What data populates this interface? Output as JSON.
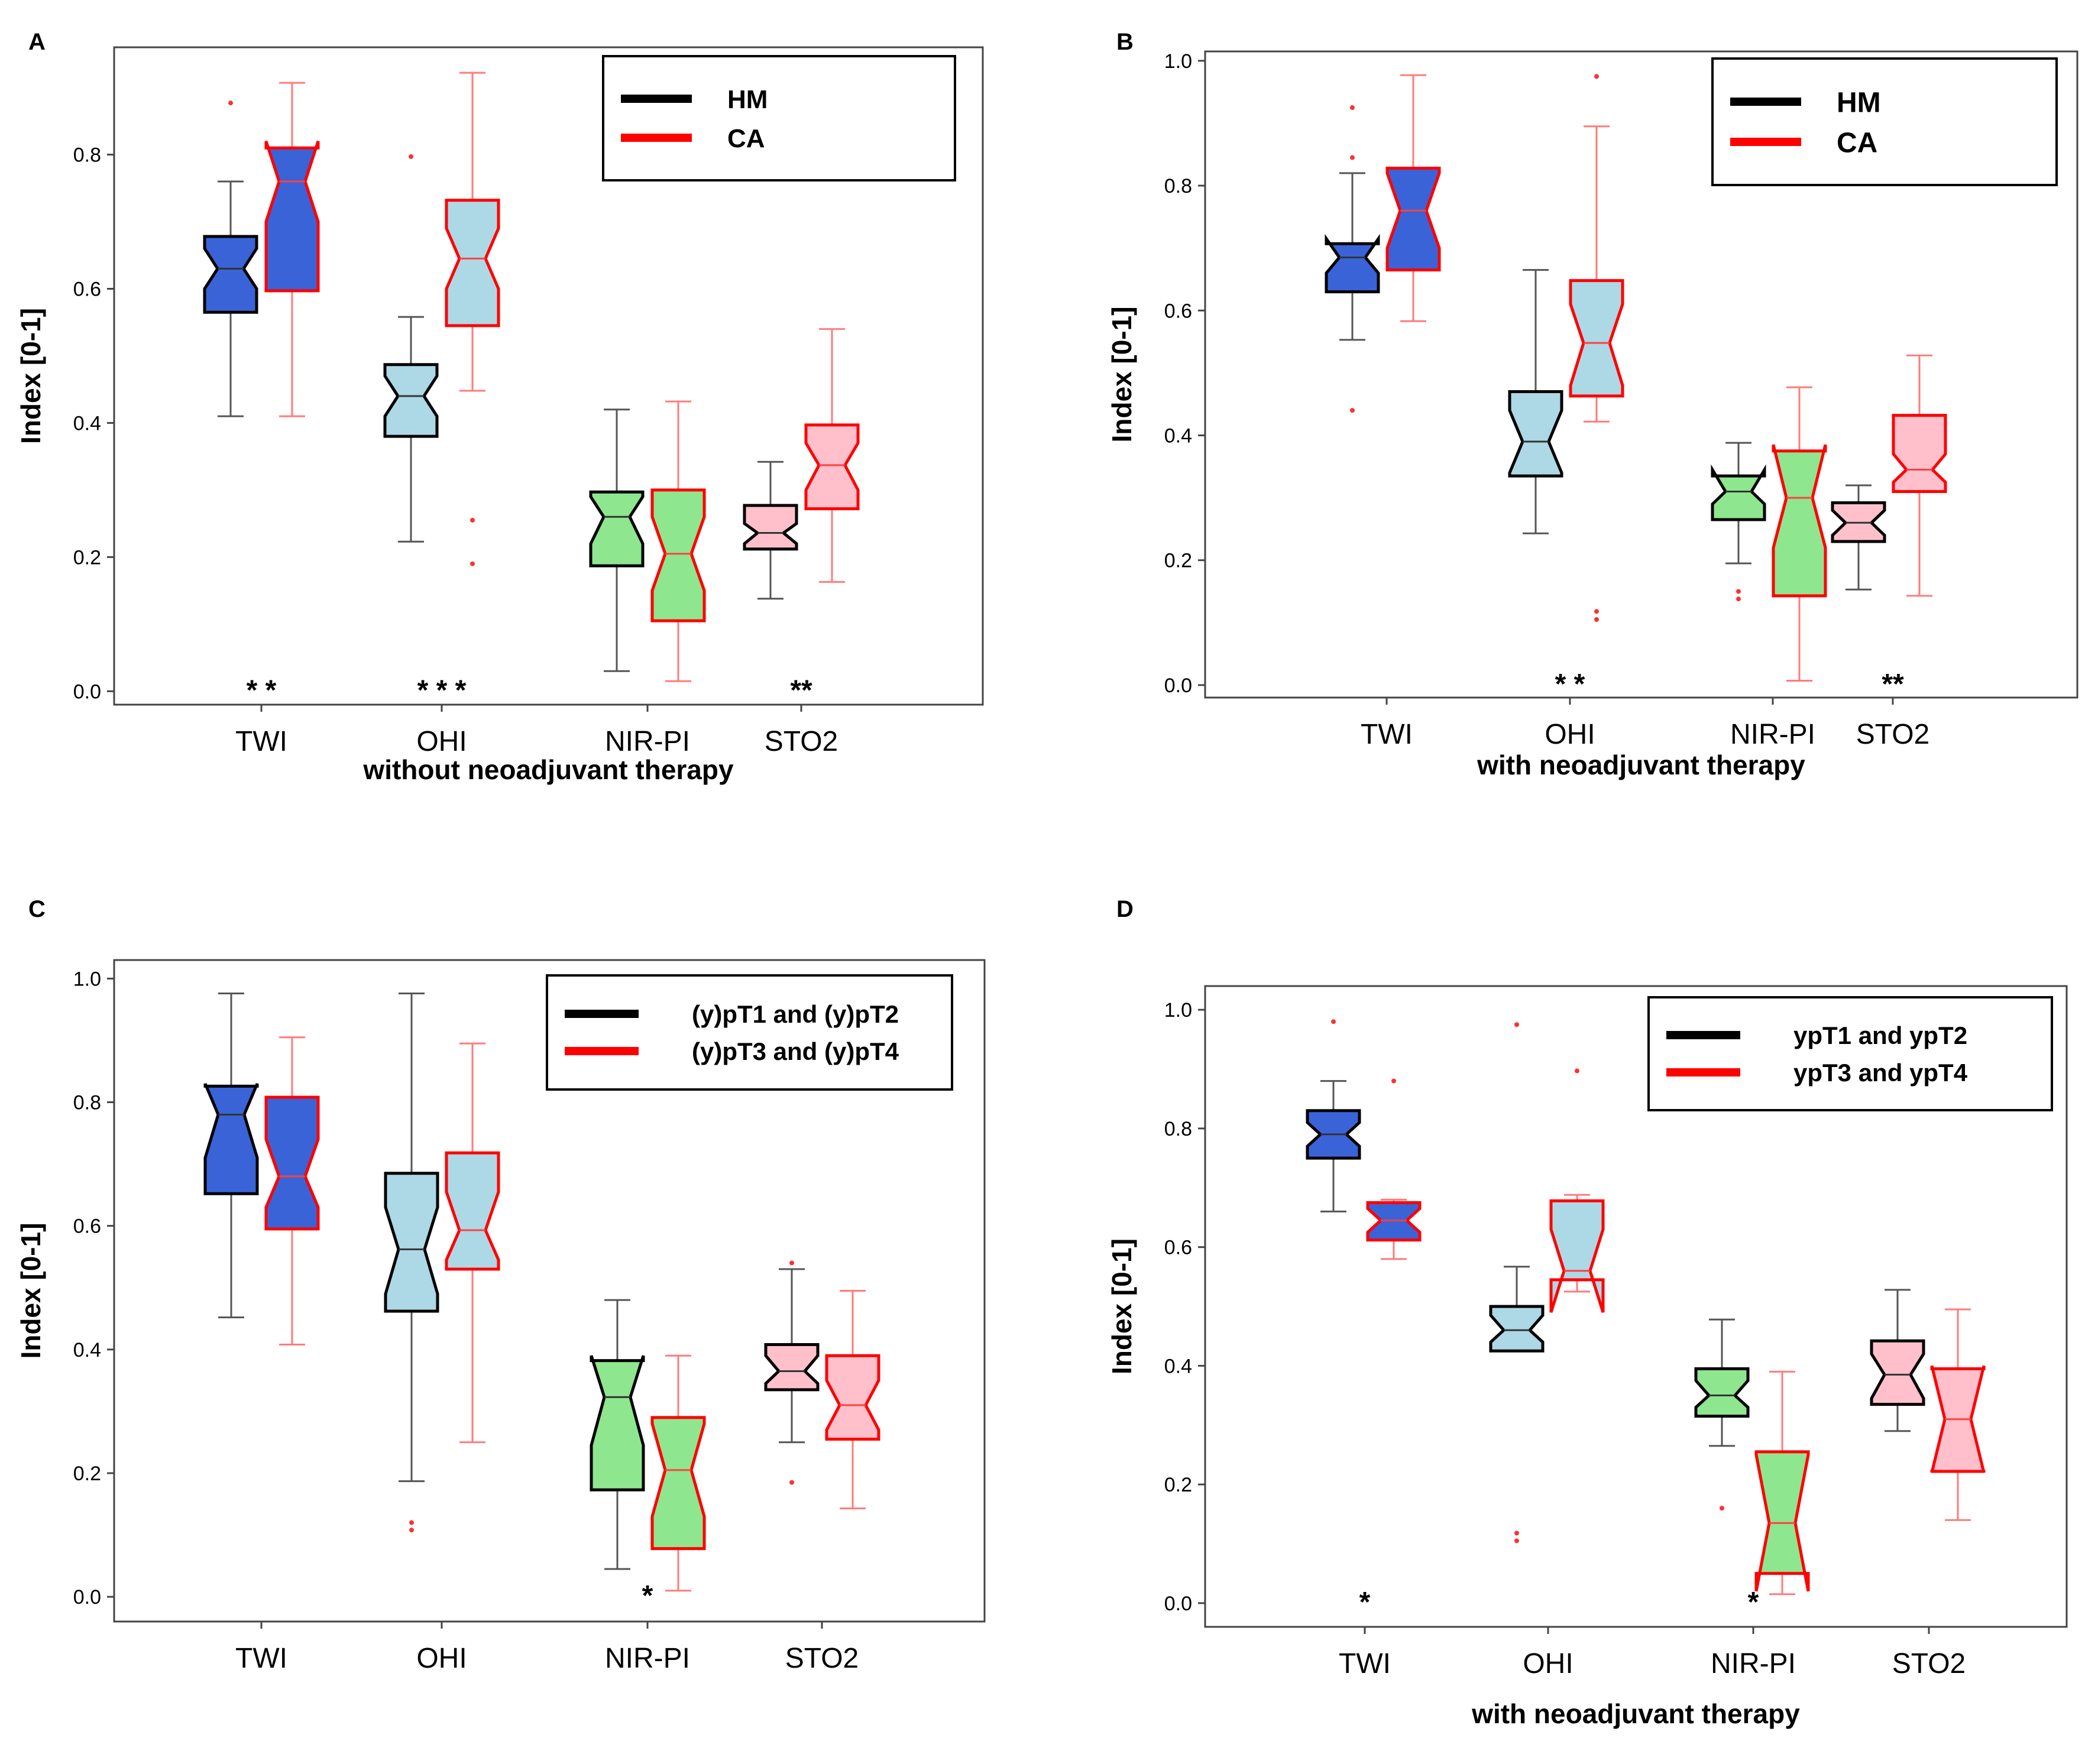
{
  "chart_data": [
    {
      "type": "box",
      "panel_label": "A",
      "title": "",
      "xlabel": "without neoadjuvant therapy",
      "ylabel": "Index [0-1]",
      "ylim": [
        -0.02,
        0.96
      ],
      "yticks": [
        0.0,
        0.2,
        0.4,
        0.6,
        0.8
      ],
      "ytick_labels": [
        "0.0",
        "0.2",
        "0.4",
        "0.6",
        "0.8"
      ],
      "ytick_labels_top": false,
      "categories": [
        "TWI",
        "OHI",
        "NIR-PI",
        "STO2"
      ],
      "legend": {
        "position": "top-right",
        "entries": [
          {
            "label": "HM",
            "color": "#000000"
          },
          {
            "label": "CA",
            "color": "#ff0000"
          }
        ]
      },
      "series": [
        {
          "name": "HM",
          "edge_color": "#000000",
          "boxes": [
            {
              "category": "TWI",
              "whisker_low": 0.41,
              "q1": 0.565,
              "median": 0.63,
              "q3": 0.678,
              "whisker_high": 0.76,
              "outliers": [
                0.877
              ],
              "notch_low": 0.6,
              "notch_high": 0.66,
              "fill": "#3a63d8"
            },
            {
              "category": "OHI",
              "whisker_low": 0.223,
              "q1": 0.38,
              "median": 0.44,
              "q3": 0.487,
              "whisker_high": 0.558,
              "outliers": [
                0.797
              ],
              "notch_low": 0.41,
              "notch_high": 0.47,
              "fill": "#add8e6"
            },
            {
              "category": "NIR-PI",
              "whisker_low": 0.03,
              "q1": 0.187,
              "median": 0.26,
              "q3": 0.297,
              "whisker_high": 0.42,
              "outliers": [],
              "notch_low": 0.22,
              "notch_high": 0.29,
              "fill": "#8ee68e"
            },
            {
              "category": "STO2",
              "whisker_low": 0.138,
              "q1": 0.212,
              "median": 0.236,
              "q3": 0.277,
              "whisker_high": 0.342,
              "outliers": [],
              "notch_low": 0.22,
              "notch_high": 0.25,
              "fill": "#ffc0cb"
            }
          ]
        },
        {
          "name": "CA",
          "edge_color": "#ff0000",
          "boxes": [
            {
              "category": "TWI",
              "whisker_low": 0.41,
              "q1": 0.597,
              "median": 0.76,
              "q3": 0.81,
              "whisker_high": 0.907,
              "outliers": [],
              "notch_low": 0.7,
              "notch_high": 0.82,
              "fill": "#3a63d8"
            },
            {
              "category": "OHI",
              "whisker_low": 0.448,
              "q1": 0.545,
              "median": 0.645,
              "q3": 0.732,
              "whisker_high": 0.922,
              "outliers": [
                0.255,
                0.19
              ],
              "notch_low": 0.6,
              "notch_high": 0.69,
              "fill": "#add8e6"
            },
            {
              "category": "NIR-PI",
              "whisker_low": 0.015,
              "q1": 0.105,
              "median": 0.205,
              "q3": 0.3,
              "whisker_high": 0.432,
              "outliers": [],
              "notch_low": 0.15,
              "notch_high": 0.26,
              "fill": "#8ee68e"
            },
            {
              "category": "STO2",
              "whisker_low": 0.163,
              "q1": 0.272,
              "median": 0.337,
              "q3": 0.397,
              "whisker_high": 0.54,
              "outliers": [],
              "notch_low": 0.3,
              "notch_high": 0.37,
              "fill": "#ffc0cb"
            }
          ]
        }
      ],
      "annotations": [
        {
          "text": "* *",
          "category": "TWI",
          "y": 0.0
        },
        {
          "text": "* * *",
          "category": "OHI",
          "y": 0.0
        },
        {
          "text": "**",
          "category": "STO2",
          "y": 0.0
        }
      ]
    },
    {
      "type": "box",
      "panel_label": "B",
      "title": "",
      "xlabel": "with neoadjuvant therapy",
      "ylabel": "Index [0-1]",
      "ylim": [
        -0.02,
        1.015
      ],
      "yticks": [
        0.0,
        0.2,
        0.4,
        0.6,
        0.8,
        1.0
      ],
      "ytick_labels": [
        "0.0",
        "0.2",
        "0.4",
        "0.6",
        "0.8",
        "1.0"
      ],
      "ytick_labels_top": false,
      "categories": [
        "TWI",
        "OHI",
        "NIR-PI",
        "STO2"
      ],
      "legend": {
        "position": "top-right",
        "entries": [
          {
            "label": "HM",
            "color": "#000000"
          },
          {
            "label": "CA",
            "color": "#ff0000"
          }
        ]
      },
      "series": [
        {
          "name": "HM",
          "edge_color": "#000000",
          "boxes": [
            {
              "category": "TWI",
              "whisker_low": 0.553,
              "q1": 0.63,
              "median": 0.685,
              "q3": 0.707,
              "whisker_high": 0.82,
              "outliers": [
                0.925,
                0.845,
                0.44
              ],
              "notch_low": 0.66,
              "notch_high": 0.715,
              "fill": "#3a63d8"
            },
            {
              "category": "OHI",
              "whisker_low": 0.243,
              "q1": 0.335,
              "median": 0.39,
              "q3": 0.47,
              "whisker_high": 0.665,
              "outliers": [],
              "notch_low": 0.34,
              "notch_high": 0.44,
              "fill": "#add8e6"
            },
            {
              "category": "NIR-PI",
              "whisker_low": 0.195,
              "q1": 0.265,
              "median": 0.31,
              "q3": 0.335,
              "whisker_high": 0.388,
              "outliers": [
                0.15,
                0.138
              ],
              "notch_low": 0.29,
              "notch_high": 0.345,
              "fill": "#8ee68e"
            },
            {
              "category": "STO2",
              "whisker_low": 0.153,
              "q1": 0.23,
              "median": 0.26,
              "q3": 0.292,
              "whisker_high": 0.32,
              "outliers": [],
              "notch_low": 0.24,
              "notch_high": 0.28,
              "fill": "#ffc0cb"
            }
          ]
        },
        {
          "name": "CA",
          "edge_color": "#ff0000",
          "boxes": [
            {
              "category": "TWI",
              "whisker_low": 0.583,
              "q1": 0.665,
              "median": 0.76,
              "q3": 0.828,
              "whisker_high": 0.977,
              "outliers": [],
              "notch_low": 0.7,
              "notch_high": 0.82,
              "fill": "#3a63d8"
            },
            {
              "category": "OHI",
              "whisker_low": 0.422,
              "q1": 0.463,
              "median": 0.548,
              "q3": 0.648,
              "whisker_high": 0.895,
              "outliers": [
                0.975,
                0.118,
                0.105
              ],
              "notch_low": 0.48,
              "notch_high": 0.61,
              "fill": "#add8e6"
            },
            {
              "category": "NIR-PI",
              "whisker_low": 0.007,
              "q1": 0.143,
              "median": 0.3,
              "q3": 0.375,
              "whisker_high": 0.477,
              "outliers": [],
              "notch_low": 0.22,
              "notch_high": 0.385,
              "fill": "#8ee68e"
            },
            {
              "category": "STO2",
              "whisker_low": 0.143,
              "q1": 0.31,
              "median": 0.345,
              "q3": 0.432,
              "whisker_high": 0.528,
              "outliers": [],
              "notch_low": 0.325,
              "notch_high": 0.37,
              "fill": "#ffc0cb"
            }
          ]
        }
      ],
      "annotations": [
        {
          "text": "* *",
          "category": "OHI",
          "y": 0.0
        },
        {
          "text": "**",
          "category": "STO2",
          "y": 0.0
        }
      ]
    },
    {
      "type": "box",
      "panel_label": "C",
      "title": "",
      "xlabel": "",
      "ylabel": "Index [0-1]",
      "ylim": [
        -0.04,
        1.03
      ],
      "yticks": [
        0.0,
        0.2,
        0.4,
        0.6,
        0.8,
        1.0
      ],
      "ytick_labels": [
        "0.0",
        "0.2",
        "0.4",
        "0.6",
        "0.8",
        "1.0"
      ],
      "ytick_labels_top": false,
      "categories": [
        "TWI",
        "OHI",
        "NIR-PI",
        "STO2"
      ],
      "legend": {
        "position": "top-right",
        "entries": [
          {
            "label": "(y)pT1 and (y)pT2",
            "color": "#000000"
          },
          {
            "label": "(y)pT3 and (y)pT4",
            "color": "#ff0000"
          }
        ]
      },
      "series": [
        {
          "name": "(y)pT1 and (y)pT2",
          "edge_color": "#000000",
          "boxes": [
            {
              "category": "TWI",
              "whisker_low": 0.452,
              "q1": 0.652,
              "median": 0.78,
              "q3": 0.826,
              "whisker_high": 0.976,
              "outliers": [],
              "notch_low": 0.71,
              "notch_high": 0.83,
              "fill": "#3a63d8"
            },
            {
              "category": "OHI",
              "whisker_low": 0.187,
              "q1": 0.462,
              "median": 0.562,
              "q3": 0.685,
              "whisker_high": 0.976,
              "outliers": [
                0.12,
                0.108
              ],
              "notch_low": 0.49,
              "notch_high": 0.63,
              "fill": "#add8e6"
            },
            {
              "category": "NIR-PI",
              "whisker_low": 0.045,
              "q1": 0.173,
              "median": 0.323,
              "q3": 0.382,
              "whisker_high": 0.48,
              "outliers": [],
              "notch_low": 0.245,
              "notch_high": 0.39,
              "fill": "#8ee68e"
            },
            {
              "category": "STO2",
              "whisker_low": 0.25,
              "q1": 0.335,
              "median": 0.365,
              "q3": 0.408,
              "whisker_high": 0.53,
              "outliers": [
                0.185,
                0.54
              ],
              "notch_low": 0.345,
              "notch_high": 0.39,
              "fill": "#ffc0cb"
            }
          ]
        },
        {
          "name": "(y)pT3 and (y)pT4",
          "edge_color": "#ff0000",
          "boxes": [
            {
              "category": "TWI",
              "whisker_low": 0.408,
              "q1": 0.595,
              "median": 0.68,
              "q3": 0.808,
              "whisker_high": 0.905,
              "outliers": [],
              "notch_low": 0.63,
              "notch_high": 0.74,
              "fill": "#3a63d8"
            },
            {
              "category": "OHI",
              "whisker_low": 0.25,
              "q1": 0.53,
              "median": 0.593,
              "q3": 0.718,
              "whisker_high": 0.895,
              "outliers": [],
              "notch_low": 0.545,
              "notch_high": 0.655,
              "fill": "#add8e6"
            },
            {
              "category": "NIR-PI",
              "whisker_low": 0.01,
              "q1": 0.078,
              "median": 0.205,
              "q3": 0.29,
              "whisker_high": 0.39,
              "outliers": [],
              "notch_low": 0.13,
              "notch_high": 0.28,
              "fill": "#8ee68e"
            },
            {
              "category": "STO2",
              "whisker_low": 0.143,
              "q1": 0.255,
              "median": 0.31,
              "q3": 0.39,
              "whisker_high": 0.495,
              "outliers": [],
              "notch_low": 0.27,
              "notch_high": 0.35,
              "fill": "#ffc0cb"
            }
          ]
        }
      ],
      "annotations": [
        {
          "text": "*",
          "category": "NIR-PI",
          "y": 0.0
        }
      ]
    },
    {
      "type": "box",
      "panel_label": "D",
      "title": "",
      "xlabel": "with neoadjuvant therapy",
      "ylabel": "Index [0-1]",
      "ylim": [
        -0.04,
        1.04
      ],
      "yticks": [
        0.0,
        0.2,
        0.4,
        0.6,
        0.8,
        1.0
      ],
      "ytick_labels": [
        "0.0",
        "0.2",
        "0.4",
        "0.6",
        "0.8",
        "1.0"
      ],
      "ytick_labels_top": true,
      "categories": [
        "TWI",
        "OHI",
        "NIR-PI",
        "STO2"
      ],
      "legend": {
        "position": "top-right",
        "entries": [
          {
            "label": "ypT1 and ypT2",
            "color": "#000000"
          },
          {
            "label": "ypT3 and ypT4",
            "color": "#ff0000"
          }
        ]
      },
      "series": [
        {
          "name": "ypT1 and ypT2",
          "edge_color": "#000000",
          "boxes": [
            {
              "category": "TWI",
              "whisker_low": 0.66,
              "q1": 0.75,
              "median": 0.79,
              "q3": 0.83,
              "whisker_high": 0.88,
              "outliers": [
                0.98
              ],
              "notch_low": 0.77,
              "notch_high": 0.81,
              "fill": "#3a63d8"
            },
            {
              "category": "OHI",
              "whisker_low": 0.425,
              "q1": 0.425,
              "median": 0.46,
              "q3": 0.5,
              "whisker_high": 0.567,
              "outliers": [
                0.975,
                0.118,
                0.105
              ],
              "notch_low": 0.44,
              "notch_high": 0.485,
              "fill": "#add8e6"
            },
            {
              "category": "NIR-PI",
              "whisker_low": 0.265,
              "q1": 0.315,
              "median": 0.35,
              "q3": 0.395,
              "whisker_high": 0.478,
              "outliers": [
                0.16
              ],
              "notch_low": 0.33,
              "notch_high": 0.375,
              "fill": "#8ee68e"
            },
            {
              "category": "STO2",
              "whisker_low": 0.29,
              "q1": 0.335,
              "median": 0.385,
              "q3": 0.442,
              "whisker_high": 0.528,
              "outliers": [],
              "notch_low": 0.345,
              "notch_high": 0.42,
              "fill": "#ffc0cb"
            }
          ]
        },
        {
          "name": "ypT3 and ypT4",
          "edge_color": "#ff0000",
          "boxes": [
            {
              "category": "TWI",
              "whisker_low": 0.58,
              "q1": 0.612,
              "median": 0.645,
              "q3": 0.675,
              "whisker_high": 0.68,
              "outliers": [
                0.88
              ],
              "notch_low": 0.625,
              "notch_high": 0.665,
              "fill": "#3a63d8"
            },
            {
              "category": "OHI",
              "whisker_low": 0.525,
              "q1": 0.545,
              "median": 0.56,
              "q3": 0.678,
              "whisker_high": 0.688,
              "outliers": [
                0.897
              ],
              "notch_low": 0.49,
              "notch_high": 0.63,
              "fill": "#add8e6"
            },
            {
              "category": "NIR-PI",
              "whisker_low": 0.015,
              "q1": 0.05,
              "median": 0.135,
              "q3": 0.255,
              "whisker_high": 0.39,
              "outliers": [],
              "notch_low": 0.02,
              "notch_high": 0.25,
              "fill": "#8ee68e"
            },
            {
              "category": "STO2",
              "whisker_low": 0.14,
              "q1": 0.222,
              "median": 0.31,
              "q3": 0.395,
              "whisker_high": 0.495,
              "outliers": [],
              "notch_low": 0.22,
              "notch_high": 0.4,
              "fill": "#ffc0cb"
            }
          ]
        }
      ],
      "annotations": [
        {
          "text": "*",
          "category": "TWI",
          "y": 0.0
        },
        {
          "text": "*",
          "category": "NIR-PI",
          "y": 0.0
        }
      ]
    }
  ]
}
